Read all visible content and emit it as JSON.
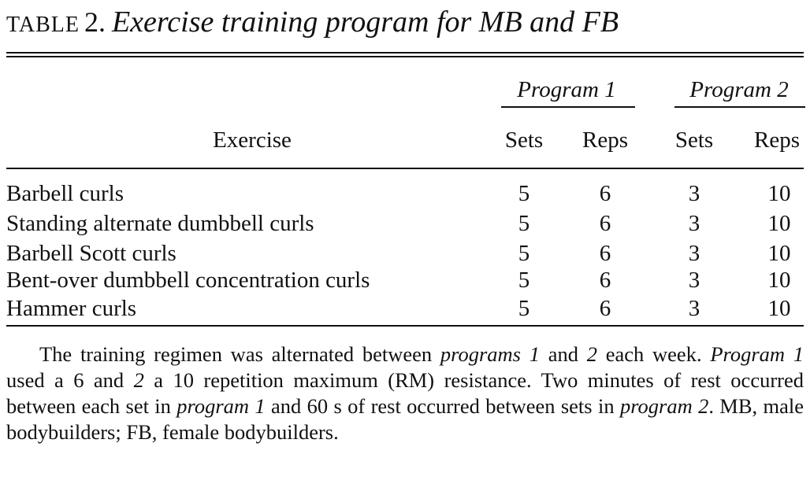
{
  "title": {
    "table_word": "TABLE",
    "number": "2.",
    "caption": "Exercise training program for MB and FB"
  },
  "headers": {
    "exercise": "Exercise",
    "program1": "Program 1",
    "program2": "Program 2",
    "columns": [
      "Sets",
      "Reps",
      "Sets",
      "Reps"
    ]
  },
  "rows": [
    {
      "exercise": "Barbell curls",
      "values": [
        "5",
        "6",
        "3",
        "10"
      ]
    },
    {
      "exercise": "Standing alternate dumbbell curls",
      "values": [
        "5",
        "6",
        "3",
        "10"
      ]
    },
    {
      "exercise": "Barbell Scott curls",
      "values": [
        "5",
        "6",
        "3",
        "10"
      ]
    },
    {
      "exercise": "Bent-over dumbbell concentration curls",
      "values": [
        "5",
        "6",
        "3",
        "10"
      ]
    },
    {
      "exercise": "Hammer curls",
      "values": [
        "5",
        "6",
        "3",
        "10"
      ]
    }
  ],
  "footnote": {
    "p1": "The training regimen was alternated between ",
    "i1": "programs 1",
    "p2": " and ",
    "i2": "2",
    "p3": " each week. ",
    "i3": "Program 1",
    "p4": " used a 6 and ",
    "i4": "2",
    "p5": " a 10 repetition maximum (RM) resistance. Two minutes of rest occurred between each set in ",
    "i5": "program 1",
    "p6": " and 60 s of rest occurred between sets in ",
    "i6": "program 2",
    "p7": ". MB, male bodybuilders; FB, female bodybuilders."
  }
}
